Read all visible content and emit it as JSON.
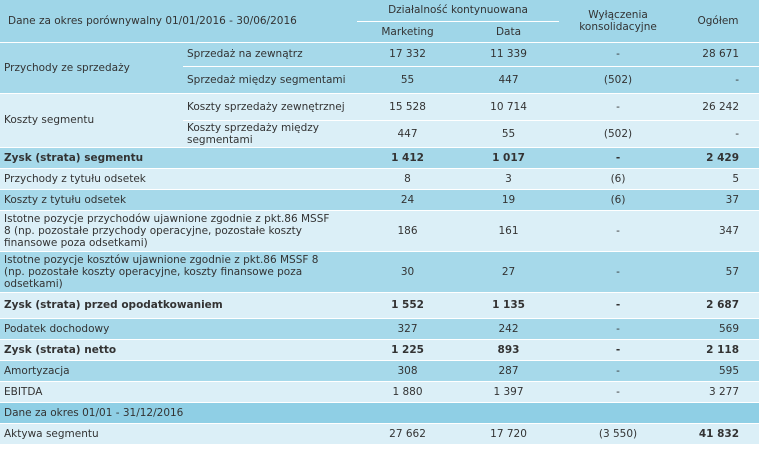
{
  "header": {
    "period_label": "Dane za okres porównywalny 01/01/2016 - 30/06/2016",
    "continuing_ops": "Działalność kontynuowana",
    "col_marketing": "Marketing",
    "col_data": "Data",
    "col_eliminations": "Wyłączenia konsolidacyjne",
    "col_total": "Ogółem"
  },
  "revenue": {
    "label": "Przychody ze sprzedaży",
    "sub1": {
      "label": "Sprzedaż na zewnątrz",
      "marketing": "17 332",
      "data": "11 339",
      "elim": "-",
      "total": "28 671"
    },
    "sub2": {
      "label": "Sprzedaż między segmentami",
      "marketing": "55",
      "data": "447",
      "elim": "(502)",
      "total": "-"
    }
  },
  "costs": {
    "label": "Koszty segmentu",
    "sub1": {
      "label": "Koszty sprzedaży zewnętrznej",
      "marketing": "15 528",
      "data": "10 714",
      "elim": "-",
      "total": "26 242"
    },
    "sub2": {
      "label": "Koszty sprzedaży między segmentami",
      "marketing": "447",
      "data": "55",
      "elim": "(502)",
      "total": "-"
    }
  },
  "rows": [
    {
      "label": "Zysk (strata) segmentu",
      "marketing": "1 412",
      "data": "1 017",
      "elim": "-",
      "total": "2 429"
    },
    {
      "label": "Przychody z tytułu odsetek",
      "marketing": "8",
      "data": "3",
      "elim": "(6)",
      "total": "5"
    },
    {
      "label": "Koszty z tytułu odsetek",
      "marketing": "24",
      "data": "19",
      "elim": "(6)",
      "total": "37"
    },
    {
      "label": "Istotne pozycje przychodów ujawnione zgodnie z pkt.86 MSSF 8 (np. pozostałe przychody operacyjne, pozostałe koszty finansowe poza odsetkami)",
      "marketing": "186",
      "data": "161",
      "elim": "-",
      "total": "347"
    },
    {
      "label": "Istotne pozycje kosztów ujawnione zgodnie z pkt.86 MSSF 8 (np. pozostałe koszty operacyjne, koszty finansowe poza odsetkami)",
      "marketing": "30",
      "data": "27",
      "elim": "-",
      "total": "57"
    },
    {
      "label": "Zysk (strata) przed opodatkowaniem",
      "marketing": "1 552",
      "data": "1 135",
      "elim": "-",
      "total": "2 687"
    },
    {
      "label": "Podatek dochodowy",
      "marketing": "327",
      "data": "242",
      "elim": "-",
      "total": "569"
    },
    {
      "label": "Zysk (strata) netto",
      "marketing": "1 225",
      "data": "893",
      "elim": "-",
      "total": "2 118"
    },
    {
      "label": "Amortyzacja",
      "marketing": "308",
      "data": "287",
      "elim": "-",
      "total": "595"
    },
    {
      "label": "EBITDA",
      "marketing": "1 880",
      "data": "1 397",
      "elim": "-",
      "total": "3 277"
    }
  ],
  "section2": {
    "label": "Dane za okres 01/01 - 31/12/2016"
  },
  "assets": {
    "label": "Aktywa segmentu",
    "marketing": "27 662",
    "data": "17 720",
    "elim": "(3 550)",
    "total": "41 832"
  }
}
